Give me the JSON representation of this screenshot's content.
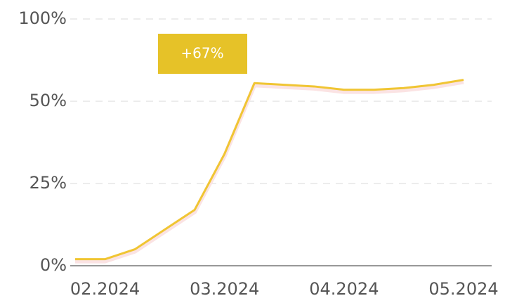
{
  "chart_data": {
    "type": "line",
    "categories": [
      null,
      "02.2024",
      null,
      null,
      null,
      "03.2024",
      null,
      null,
      null,
      "04.2024",
      null,
      null,
      null,
      "05.2024"
    ],
    "series": [
      {
        "color": "#f0c533",
        "values": [
          2,
          2,
          5,
          11,
          17,
          34,
          61,
          60,
          59,
          57,
          57,
          58,
          60,
          63
        ]
      }
    ],
    "ylim": [
      0,
      100
    ],
    "yticks": [
      {
        "value": 0,
        "label": "0%"
      },
      {
        "value": 25,
        "label": "25%"
      },
      {
        "value": 50,
        "label": "50%"
      },
      {
        "value": 100,
        "label": "100%"
      }
    ],
    "grid": true,
    "annotation": "+67%"
  }
}
